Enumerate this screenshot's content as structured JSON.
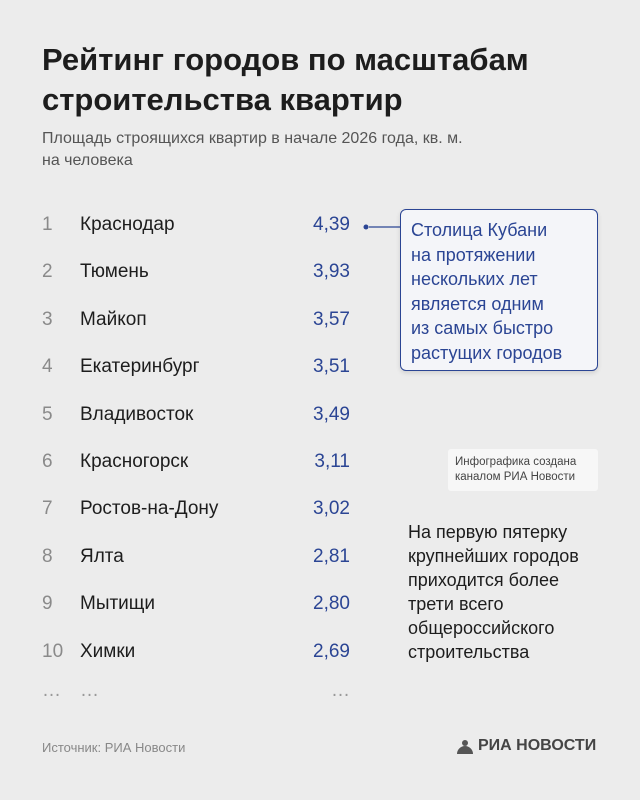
{
  "header": {
    "title": [
      "Рейтинг городов по масштабам",
      "строительства квартир"
    ],
    "subtitle": [
      "Площадь строящихся квартир в начале 2026 года, кв. м.",
      "на человека"
    ]
  },
  "table": {
    "rows": [
      [
        1,
        "Краснодар",
        "4,39"
      ],
      [
        2,
        "Тюмень",
        "3,93"
      ],
      [
        3,
        "Майкоп",
        "3,57"
      ],
      [
        4,
        "Екатеринбург",
        "3,51"
      ],
      [
        5,
        "Владивосток",
        "3,49"
      ],
      [
        6,
        "Красногорск",
        "3,11"
      ],
      [
        7,
        "Ростов-на-Дону",
        "3,02"
      ],
      [
        8,
        "Ялта",
        "2,81"
      ],
      [
        9,
        "Мытищи",
        "2,80"
      ],
      [
        10,
        "Химки",
        "2,69"
      ]
    ],
    "ellipsis": [
      "…",
      "…",
      "…"
    ]
  },
  "callout": {
    "lines": [
      "Столица Кубани",
      "на протяжении",
      "нескольких лет",
      "является одним",
      "из самых быстро",
      "растущих городов"
    ]
  },
  "note": {
    "lines": [
      "Инфографика создана",
      "каналом РИА Новости"
    ]
  },
  "summary": {
    "lines": [
      "На первую пятерку",
      "крупнейших городов",
      "приходится более",
      "трети всего",
      "общероссийского",
      "строительства"
    ]
  },
  "footer": {
    "source": "Источник: РИА Новости",
    "logo": "РИА НОВОСТИ"
  }
}
